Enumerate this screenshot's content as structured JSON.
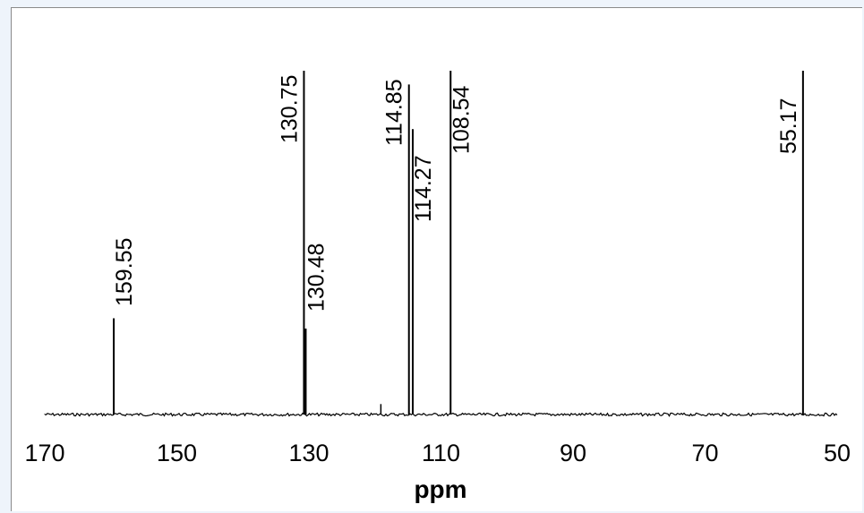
{
  "chart_data": {
    "type": "line",
    "title": "",
    "xlabel": "ppm",
    "ylabel": "",
    "xlim": [
      170,
      50
    ],
    "x_reversed": true,
    "x_ticks": [
      170,
      150,
      130,
      110,
      90,
      70,
      50
    ],
    "grid": false,
    "legend": "none",
    "peaks": [
      {
        "ppm": 159.55,
        "label": "159.55",
        "height": 0.28
      },
      {
        "ppm": 130.75,
        "label": "130.75",
        "height": 1.0
      },
      {
        "ppm": 130.48,
        "label": "130.48",
        "height": 0.25
      },
      {
        "ppm": 114.85,
        "label": "114.85",
        "height": 0.96
      },
      {
        "ppm": 114.27,
        "label": "114.27",
        "height": 0.83
      },
      {
        "ppm": 108.54,
        "label": "108.54",
        "height": 1.0
      },
      {
        "ppm": 55.17,
        "label": "55.17",
        "height": 1.0
      }
    ],
    "minor_peaks": [
      {
        "ppm": 119.1,
        "height": 0.02
      }
    ],
    "colors": {
      "line": "#000000",
      "background": "#ffffff"
    }
  }
}
